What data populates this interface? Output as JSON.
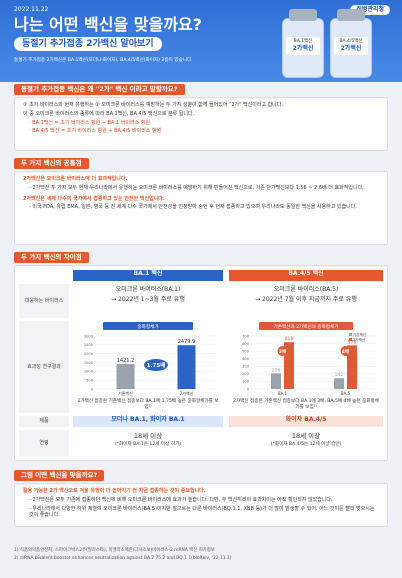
{
  "header": {
    "date": "2022.11.22",
    "agency": "질병관리청",
    "title": "나는 어떤 백신을 맞을까요?",
    "subtitle": "동절기 추가접종 2가백신 알아보기",
    "note": "동절기 추가접종 2가백신은 BA.1백신(모더나·화이자), BA.4/5백신(화이자) 2종이 있습니다.",
    "vials": [
      {
        "label": "BA.1백신",
        "type": "2가백신"
      },
      {
        "label": "BA.4/5백신",
        "type": "2가백신"
      }
    ]
  },
  "section1": {
    "title": "동절기 추가접종 백신은 왜 \"2가\" 백신 이라고 말할까요?",
    "items": [
      "① 초기 바이러스와 현재 유행하는 ② 오미크론 바이러스를 예방하는 두 가지 성분이 함께 들어있어 \"2가\" 백신이라고 합니다.",
      "이 중 오미크론 바이러스의 종류에 따라 BA.1백신, BA.4/5 백신으로 분류 됩니다."
    ],
    "sub": [
      "· BA.1백신 = 초기 바이러스 항원 + BA.1 바이러스 항원",
      "· BA.4/5 백신 = 초기 바이러스 항원 + BA.4/5 바이러스 항원"
    ]
  },
  "section2": {
    "title": "두 가지 백신의 공통점",
    "items": [
      {
        "head": "2가백신은 오미크론 바이러스에 더 효과적입니다.",
        "body": "- 2가백신 두 가지 모두 현재 우리나라에서 유행하는 오미크론 바이러스를 예방하기 위해 만들어진 백신으로, 기존 단가백신보다 1.56 ~ 2.6배 더 효과적입니다."
      },
      {
        "head": "2가백신은 세계 다수의 국가에서 접종하고 있는 안전한 백신입니다.",
        "body": "- 미국 FDA, 유럽 EMA, 일본, 영국 등 전 세계 다수 국가에서 안전성을 인정받아 승인 후 현재 접종하고 있으며 우리나라도 동일한 백신을 사용하고 있습니다."
      }
    ]
  },
  "section3": {
    "title": "두 가지 백신의 차이점",
    "columns": [
      "BA.1 백신",
      "BA.4/5 백신"
    ],
    "row_labels": [
      "대응하는 바이러스",
      "효과성 연구결과",
      "제품",
      "연령"
    ],
    "virus": [
      {
        "name": "오미크론 바이러스(BA.1)",
        "note": "→ 2022년 1~3월 주로 유행"
      },
      {
        "name": "오미크론 바이러스(BA.5)",
        "note": "→ 2022년 7월 이후 지금까지 주로 유행"
      }
    ],
    "effect": [
      "2가백신 접종은 기존백신 접종보다 BA.1에 1.75배 높은 중화항체가를 보임¹⁾",
      "2가백신 접종은 기존백신 접종보다 BA.1에 3배, BA.5에 4배 높은 중화항체가를 보임²⁾"
    ],
    "products": [
      "모더나 BA.1, 화이자 BA.1",
      "화이자 BA.4/5"
    ],
    "age": [
      {
        "main": "18세 이상",
        "note": "(*화이자 BA.1은 12세 이상 허가)"
      },
      {
        "main": "18세 이상",
        "note": "(*화이자 BA.4/5는 12세 이상 승인)"
      }
    ]
  },
  "chart_data": [
    {
      "type": "bar",
      "title": "중화항체가",
      "categories": [
        "기존백신",
        "2가백신"
      ],
      "values": [
        1421.2,
        2479.9
      ],
      "colors": [
        "#9aa3ad",
        "#2c63c6"
      ],
      "ylim": [
        0,
        3000
      ],
      "yticks": [
        0,
        500,
        1000,
        1500,
        2000,
        2500,
        3000
      ],
      "annotation": "1.75배"
    },
    {
      "type": "grouped-bar",
      "title": "기존백신과 2가백신의 중화항체가",
      "categories": [
        "BA.1",
        "BA.5"
      ],
      "series": [
        {
          "name": "기존백신",
          "color": "#9aa3ad",
          "values": [
            206,
            142
          ]
        },
        {
          "name": "2가백신",
          "color": "#e05a3a",
          "values": [
            618,
            576
          ]
        }
      ],
      "ylim": [
        0,
        700
      ],
      "yticks": [
        0,
        100,
        200,
        300,
        400,
        500,
        600,
        700
      ],
      "annotations": [
        "3배",
        "4배"
      ]
    }
  ],
  "section4": {
    "title": "그럼 어떤 백신을 맞을까요?",
    "head": "활용 가능한 2가 백신으로 겨울 유행이 더 높아지기 전 지금 접종하는 것이 중요합니다.",
    "items": [
      "- 2가백신은 모두 기존에 접종하던 백신에 비해 오미크론 바이러스에 효과가 높습니다. 다만, 두 백신끼리의 효과차이는 아직 확인되지 않았습니다.",
      "- 우리나라에서 다양한 하위 계열의 오미크론 바이러스(BA.5)이지만 앞으로는 다른 바이러스(BQ.1.1, XBB 등)가 더 많이 발생할 수 있어, 어느 것이든 빨리 맞으시는 것이 좋습니다."
    ]
  },
  "footnotes": [
    "1) 식품의약품안전처, 스파이크박스2주(필라스타), 이엘라소메란(다사조보)바이러스-2 mRNA 백신 허가정보",
    "2) mRNA bivalent booster enhances neutralization against BA.2.75.2 and BQ.1.1(bioRxiv, '22.11.1)"
  ]
}
